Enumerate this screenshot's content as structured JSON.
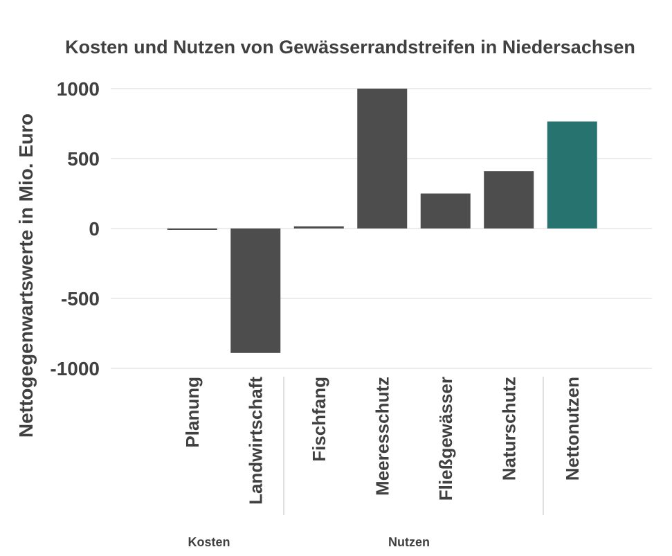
{
  "chart_data": {
    "type": "bar",
    "title": "Kosten und Nutzen von Gewässerrandstreifen in Niedersachsen",
    "xlabel": "",
    "ylabel": "Nettogegenwartswerte in Mio. Euro",
    "ylim": [
      -1000,
      1000
    ],
    "yticks": [
      1000,
      500,
      0,
      -500,
      -1000
    ],
    "ytick_labels": [
      "1000",
      "500",
      "0",
      "-500",
      "-1000"
    ],
    "grid": true,
    "legend": "none",
    "categories": [
      "Planung",
      "Landwirtschaft",
      "Fischfang",
      "Meeresschutz",
      "Fließgewässer",
      "Naturschutz",
      "Nettonutzen"
    ],
    "values": [
      -5,
      -890,
      15,
      1000,
      250,
      410,
      765
    ],
    "colors": [
      "#4d4d4d",
      "#4d4d4d",
      "#4d4d4d",
      "#4d4d4d",
      "#4d4d4d",
      "#4d4d4d",
      "#267370"
    ],
    "groups": [
      {
        "label": "Kosten",
        "categories": [
          "Planung",
          "Landwirtschaft"
        ]
      },
      {
        "label": "Nutzen",
        "categories": [
          "Fischfang",
          "Meeresschutz",
          "Fließgewässer",
          "Naturschutz"
        ]
      }
    ]
  }
}
